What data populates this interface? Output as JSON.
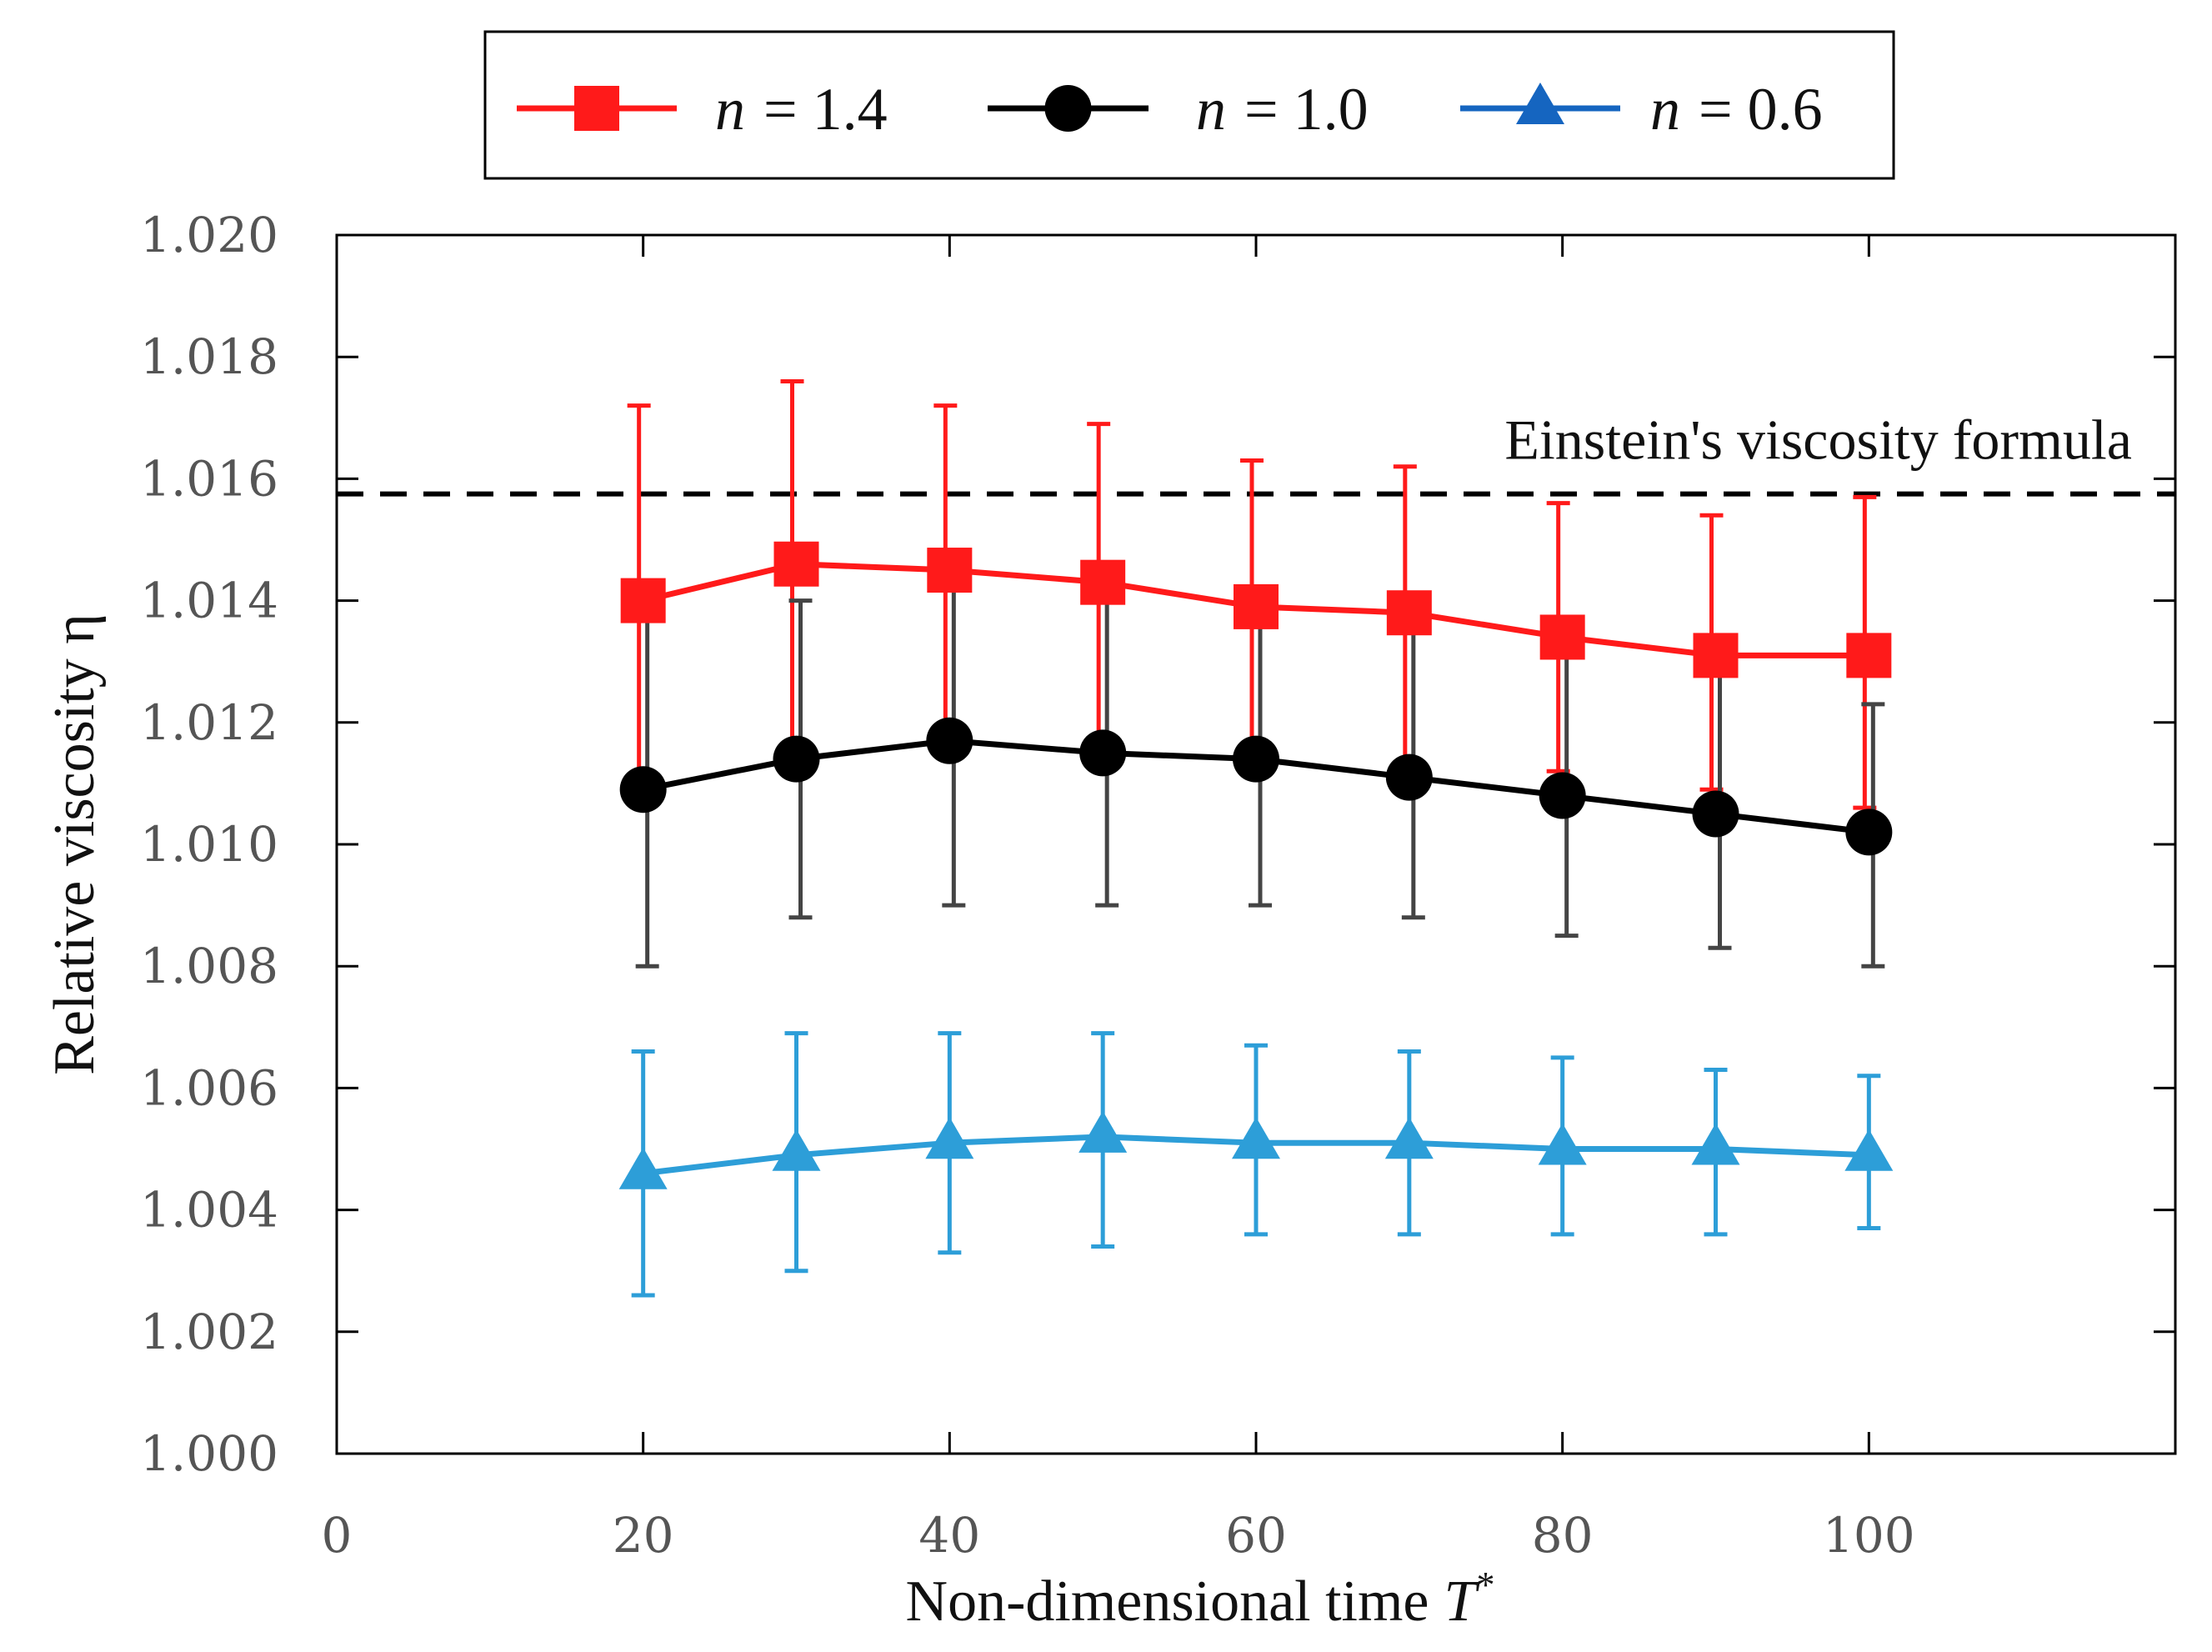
{
  "chart_data": {
    "type": "line",
    "xlabel": "Non-dimensional time",
    "xlabel_symbol": "T",
    "xlabel_superscript": "*",
    "ylabel": "Relative viscosity η",
    "xlim": [
      0,
      120
    ],
    "ylim": [
      1.0,
      1.02
    ],
    "x_ticks": [
      0,
      20,
      40,
      60,
      80,
      100
    ],
    "x_tick_labels": [
      "0",
      "20",
      "40",
      "60",
      "80",
      "100"
    ],
    "y_ticks": [
      1.0,
      1.002,
      1.004,
      1.006,
      1.008,
      1.01,
      1.012,
      1.014,
      1.016,
      1.018,
      1.02
    ],
    "y_tick_labels": [
      "1.000",
      "1.002",
      "1.004",
      "1.006",
      "1.008",
      "1.010",
      "1.012",
      "1.014",
      "1.016",
      "1.018",
      "1.020"
    ],
    "grid": false,
    "legend_position": "top",
    "x": [
      20,
      30,
      40,
      50,
      60,
      70,
      80,
      90,
      100
    ],
    "series": [
      {
        "name": "n = 1.4",
        "name_symbol": "n",
        "name_value": "= 1.4",
        "marker": "square",
        "color": "#ff1a1a",
        "values": [
          1.014,
          1.0146,
          1.0145,
          1.0143,
          1.0139,
          1.0138,
          1.0134,
          1.0131,
          1.0131
        ],
        "err_low": [
          1.011,
          1.0116,
          1.0118,
          1.0116,
          1.0116,
          1.0113,
          1.0112,
          1.0109,
          1.0106
        ],
        "err_high": [
          1.0172,
          1.0176,
          1.0172,
          1.0169,
          1.0163,
          1.0162,
          1.0156,
          1.0154,
          1.0157
        ]
      },
      {
        "name": "n = 1.0",
        "name_symbol": "n",
        "name_value": "= 1.0",
        "marker": "circle",
        "color": "#000000",
        "error_color": "#444444",
        "values": [
          1.0109,
          1.0114,
          1.0117,
          1.0115,
          1.0114,
          1.0111,
          1.0108,
          1.0105,
          1.0102
        ],
        "err_low": [
          1.008,
          1.0088,
          1.009,
          1.009,
          1.009,
          1.0088,
          1.0085,
          1.0083,
          1.008
        ],
        "err_high": [
          1.0137,
          1.014,
          1.0142,
          1.014,
          1.0138,
          1.0135,
          1.0131,
          1.0128,
          1.0123
        ]
      },
      {
        "name": "n = 0.6",
        "name_symbol": "n",
        "name_value": "= 0.6",
        "marker": "triangle",
        "color": "#2d9ed8",
        "legend_color": "#1565c0",
        "values": [
          1.0046,
          1.0049,
          1.0051,
          1.0052,
          1.0051,
          1.0051,
          1.005,
          1.005,
          1.0049
        ],
        "err_low": [
          1.0026,
          1.003,
          1.0033,
          1.0034,
          1.0036,
          1.0036,
          1.0036,
          1.0036,
          1.0037
        ],
        "err_high": [
          1.0066,
          1.0069,
          1.0069,
          1.0069,
          1.0067,
          1.0066,
          1.0065,
          1.0063,
          1.0062
        ]
      }
    ],
    "reference_line": {
      "label": "Einstein's viscosity formula",
      "y": 1.01575,
      "style": "dashed",
      "color": "#000000"
    }
  }
}
